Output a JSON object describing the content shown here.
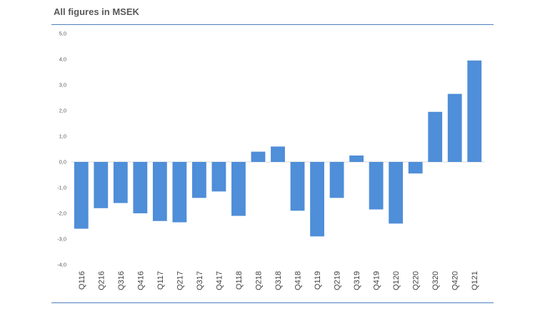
{
  "header": {
    "title": "All figures in MSEK"
  },
  "colors": {
    "bar": "#4f8ed8",
    "rule": "#4f81bd",
    "zero_line": "#d9d9d9"
  },
  "chart_data": {
    "type": "bar",
    "title": "All figures in MSEK",
    "xlabel": "",
    "ylabel": "",
    "ylim": [
      -4.0,
      5.0
    ],
    "yticks": [
      5.0,
      4.0,
      3.0,
      2.0,
      1.0,
      0.0,
      -1.0,
      -2.0,
      -3.0,
      -4.0
    ],
    "ytick_labels": [
      "5,0",
      "4,0",
      "3,0",
      "2,0",
      "1,0",
      "0,0",
      "-1,0",
      "-2,0",
      "-3,0",
      "-4,0"
    ],
    "grid": false,
    "legend": "none",
    "categories": [
      "Q116",
      "Q216",
      "Q316",
      "Q416",
      "Q117",
      "Q217",
      "Q317",
      "Q417",
      "Q118",
      "Q218",
      "Q318",
      "Q418",
      "Q119",
      "Q219",
      "Q319",
      "Q419",
      "Q120",
      "Q220",
      "Q320",
      "Q420",
      "Q121"
    ],
    "values": [
      -2.6,
      -1.8,
      -1.6,
      -2.0,
      -2.3,
      -2.35,
      -1.4,
      -1.15,
      -2.1,
      0.4,
      0.6,
      -1.9,
      -2.9,
      -1.4,
      0.25,
      -1.85,
      -2.4,
      -0.45,
      1.95,
      2.65,
      3.95
    ]
  }
}
